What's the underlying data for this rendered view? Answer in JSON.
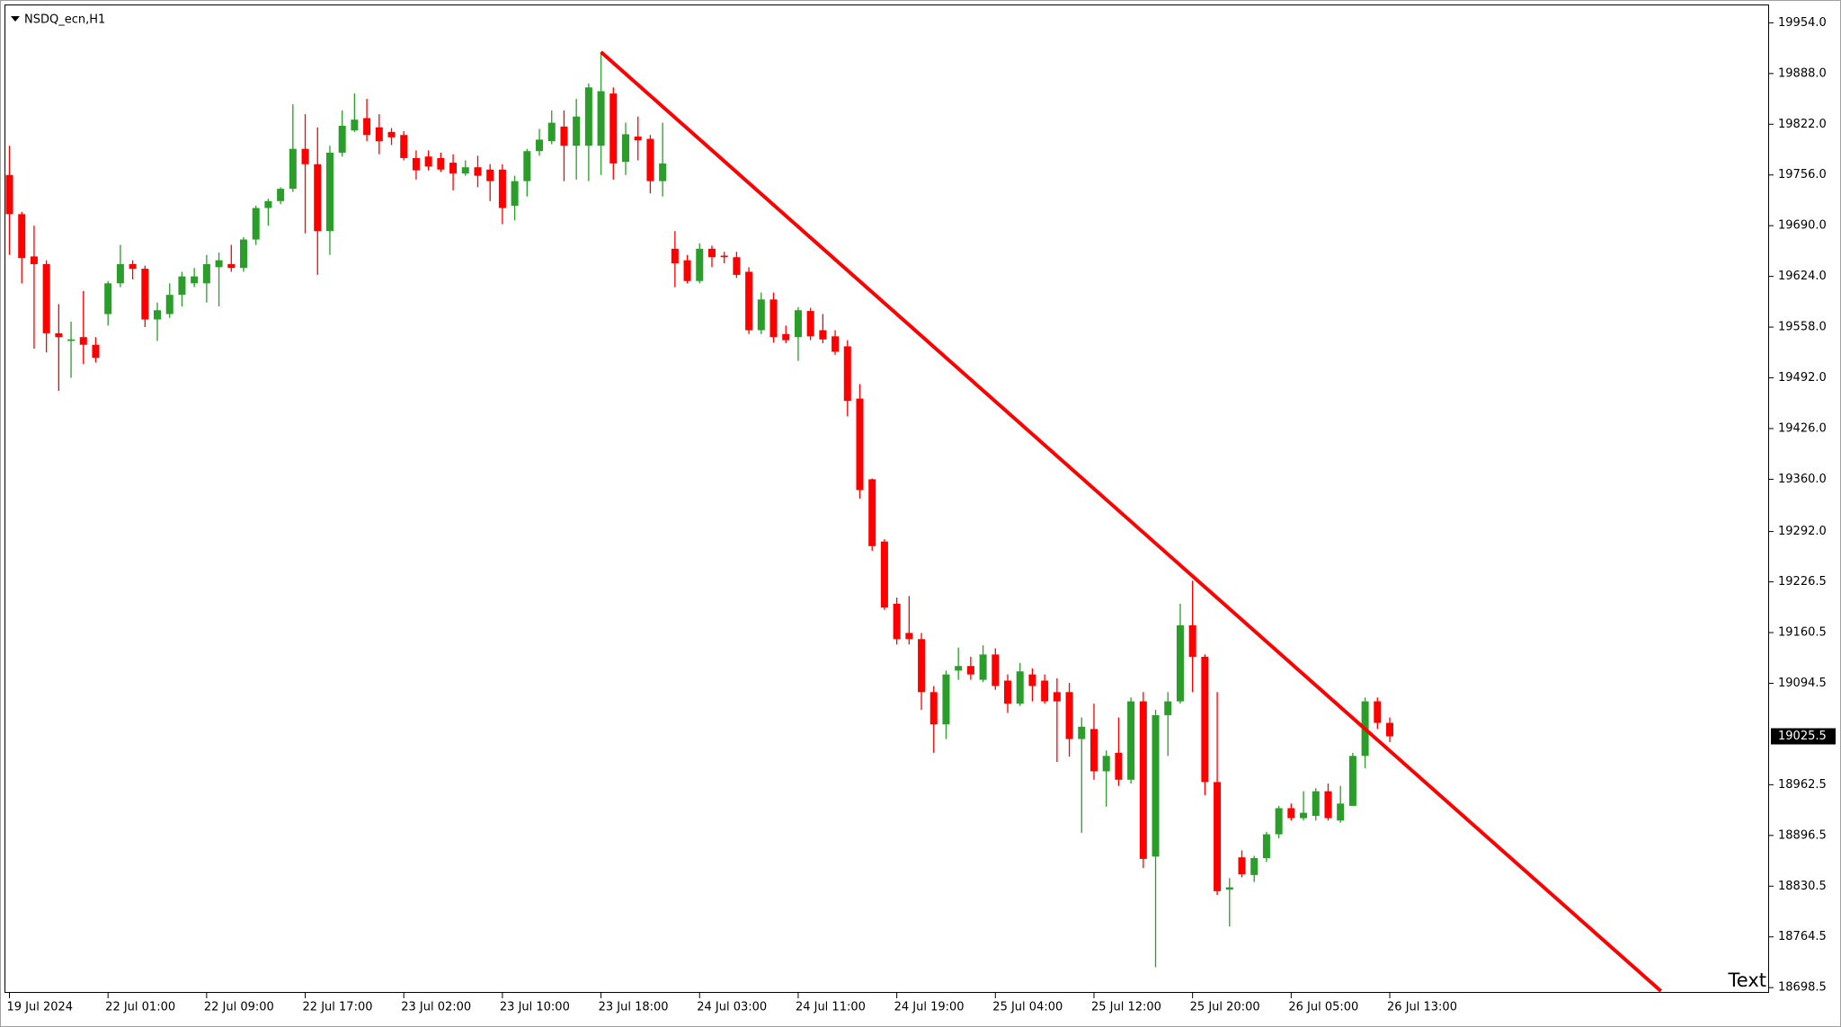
{
  "chart_data": {
    "type": "candlestick",
    "title": "NSDQ_ecn,H1",
    "categories": [
      "19 Jul 2024",
      null,
      null,
      null,
      null,
      null,
      null,
      null,
      "22 Jul 01:00",
      null,
      null,
      null,
      null,
      null,
      null,
      null,
      "22 Jul 09:00",
      null,
      null,
      null,
      null,
      null,
      null,
      null,
      "22 Jul 17:00",
      null,
      null,
      null,
      null,
      null,
      null,
      null,
      "23 Jul 02:00",
      null,
      null,
      null,
      null,
      null,
      null,
      null,
      "23 Jul 10:00",
      null,
      null,
      null,
      null,
      null,
      null,
      null,
      "23 Jul 18:00",
      null,
      null,
      null,
      null,
      null,
      null,
      null,
      "24 Jul 03:00",
      null,
      null,
      null,
      null,
      null,
      null,
      null,
      "24 Jul 11:00",
      null,
      null,
      null,
      null,
      null,
      null,
      null,
      "24 Jul 19:00",
      null,
      null,
      null,
      null,
      null,
      null,
      null,
      "25 Jul 04:00",
      null,
      null,
      null,
      null,
      null,
      null,
      null,
      "25 Jul 12:00",
      null,
      null,
      null,
      null,
      null,
      null,
      null,
      "25 Jul 20:00",
      null,
      null,
      null,
      null,
      null,
      null,
      null,
      "26 Jul 05:00",
      null,
      null,
      null,
      null,
      null,
      null,
      null,
      "26 Jul 13:00"
    ],
    "open": [
      19756,
      19705,
      19650,
      19640,
      19550,
      19540,
      19545,
      19535,
      19575,
      19615,
      19640,
      19634,
      19568,
      19575,
      19600,
      19615,
      19615,
      19636,
      19640,
      19635,
      19672,
      19713,
      19722,
      19738,
      19790,
      19770,
      19683,
      19785,
      19814,
      19830,
      19818,
      19812,
      19808,
      19778,
      19780,
      19778,
      19772,
      19758,
      19766,
      19763,
      19763,
      19716,
      19748,
      19787,
      19800,
      19819,
      19794,
      19794,
      19794,
      19862,
      19773,
      19806,
      19803,
      19748,
      19660,
      19645,
      19618,
      19660,
      19651,
      19649,
      19630,
      19554,
      19594,
      19549,
      19545,
      19579,
      19554,
      19546,
      19533,
      19465,
      19360,
      19279,
      19198,
      19160,
      19152,
      19083,
      19041,
      19111,
      19117,
      19099,
      19132,
      19098,
      19068,
      19106,
      19098,
      19083,
      19083,
      19022,
      19035,
      18980,
      19004,
      18969,
      19071,
      18869,
      19053,
      19071,
      19170,
      19129,
      18966,
      18826,
      18868,
      18845,
      18867,
      18898,
      18932,
      18919,
      18922,
      18954,
      18916,
      18935,
      19000,
      19071,
      19043
    ],
    "high": [
      19794,
      19708,
      19690,
      19645,
      19588,
      19565,
      19605,
      19545,
      19618,
      19665,
      19645,
      19638,
      19590,
      19615,
      19630,
      19635,
      19652,
      19655,
      19665,
      19675,
      19716,
      19725,
      19740,
      19848,
      19835,
      19818,
      19794,
      19840,
      19862,
      19855,
      19835,
      19817,
      19813,
      19788,
      19788,
      19785,
      19783,
      19775,
      19781,
      19770,
      19770,
      19755,
      19790,
      19816,
      19840,
      19840,
      19855,
      19875,
      19916,
      19870,
      19824,
      19832,
      19808,
      19824,
      19683,
      19652,
      19667,
      19664,
      19656,
      19656,
      19636,
      19603,
      19603,
      19560,
      19584,
      19583,
      19575,
      19554,
      19541,
      19484,
      19361,
      19282,
      19206,
      19208,
      19160,
      19091,
      19111,
      19141,
      19129,
      19144,
      19140,
      19106,
      19121,
      19114,
      19106,
      19101,
      19095,
      19050,
      19068,
      19007,
      19050,
      19076,
      19083,
      19060,
      19083,
      19198,
      19228,
      19132,
      19083,
      18841,
      18877,
      18870,
      18901,
      18935,
      18938,
      18954,
      18958,
      18964,
      18961,
      19004,
      19076,
      19076,
      19050
    ],
    "low": [
      19652,
      19615,
      19530,
      19525,
      19475,
      19492,
      19510,
      19512,
      19560,
      19610,
      19620,
      19558,
      19540,
      19570,
      19585,
      19610,
      19590,
      19585,
      19630,
      19630,
      19665,
      19690,
      19718,
      19734,
      19680,
      19626,
      19652,
      19780,
      19812,
      19800,
      19783,
      19795,
      19775,
      19750,
      19762,
      19760,
      19736,
      19755,
      19740,
      19722,
      19692,
      19697,
      19728,
      19781,
      19796,
      19748,
      19750,
      19748,
      19756,
      19750,
      19756,
      19775,
      19732,
      19728,
      19610,
      19615,
      19615,
      19636,
      19641,
      19622,
      19549,
      19549,
      19538,
      19537,
      19514,
      19541,
      19537,
      19522,
      19442,
      19335,
      19267,
      19190,
      19145,
      19145,
      19060,
      19004,
      19022,
      19099,
      19099,
      19096,
      19086,
      19056,
      19065,
      19071,
      19068,
      18992,
      18999,
      18900,
      18969,
      18934,
      18961,
      18964,
      18854,
      18725,
      19000,
      19068,
      19083,
      18949,
      18819,
      18778,
      18842,
      18836,
      18862,
      18893,
      18916,
      18916,
      18916,
      18916,
      18913,
      18935,
      18984,
      19035,
      19018
    ],
    "close": [
      19705,
      19648,
      19640,
      19550,
      19545,
      19542,
      19535,
      19518,
      19615,
      19640,
      19634,
      19568,
      19580,
      19600,
      19624,
      19624,
      19640,
      19645,
      19635,
      19672,
      19713,
      19722,
      19738,
      19790,
      19770,
      19683,
      19785,
      19820,
      19828,
      19808,
      19800,
      19805,
      19778,
      19762,
      19767,
      19763,
      19758,
      19766,
      19755,
      19748,
      19713,
      19748,
      19787,
      19802,
      19824,
      19794,
      19832,
      19870,
      19865,
      19771,
      19809,
      19801,
      19748,
      19771,
      19641,
      19618,
      19660,
      19649,
      19649,
      19626,
      19554,
      19594,
      19545,
      19541,
      19580,
      19546,
      19542,
      19526,
      19462,
      19346,
      19273,
      19193,
      19152,
      19152,
      19083,
      19041,
      19106,
      19117,
      19106,
      19132,
      19091,
      19068,
      19110,
      19091,
      19071,
      19071,
      19022,
      19038,
      18980,
      19000,
      18969,
      19071,
      18866,
      19053,
      19071,
      19170,
      19129,
      18966,
      18824,
      18829,
      18846,
      18867,
      18898,
      18932,
      18919,
      18926,
      18954,
      18919,
      18938,
      19000,
      19071,
      19043,
      19025.5
    ],
    "up_color": "#2a9d2a",
    "down_color": "#ff0000",
    "last_price": 19025.5,
    "ylim": [
      18694,
      19972
    ],
    "yticks": [
      {
        "value": 19954,
        "label": "19954.0"
      },
      {
        "value": 19888,
        "label": "19888.0"
      },
      {
        "value": 19822,
        "label": "19822.0"
      },
      {
        "value": 19756,
        "label": "19756.0"
      },
      {
        "value": 19690,
        "label": "19690.0"
      },
      {
        "value": 19624,
        "label": "19624.0"
      },
      {
        "value": 19558,
        "label": "19558.0"
      },
      {
        "value": 19492,
        "label": "19492.0"
      },
      {
        "value": 19426,
        "label": "19426.0"
      },
      {
        "value": 19360,
        "label": "19360.0"
      },
      {
        "value": 19292,
        "label": "19292.0"
      },
      19226.5,
      19160.5,
      19094.5,
      18962.5,
      18896.5,
      18830.5,
      18764.5,
      18698.5
    ],
    "trendline": {
      "color": "#ff0000",
      "start": [
        48,
        19916
      ],
      "end": [
        134,
        18694
      ]
    },
    "text_object": "Text"
  }
}
